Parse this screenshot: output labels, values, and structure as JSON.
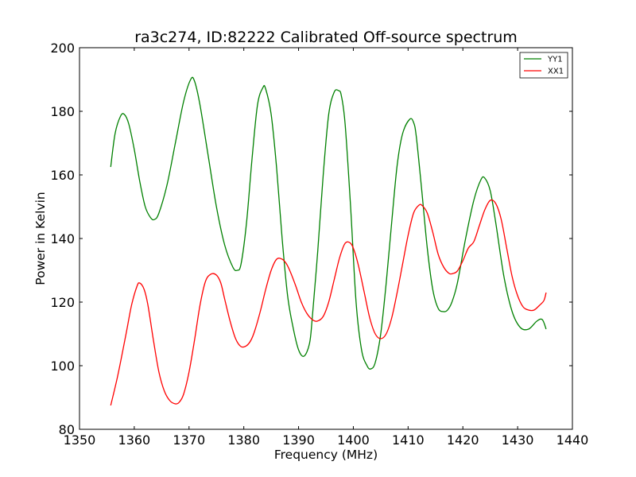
{
  "chart_data": {
    "type": "line",
    "title": "ra3c274, ID:82222 Calibrated Off-source spectrum",
    "xlabel": "Frequency (MHz)",
    "ylabel": "Power in Kelvin",
    "xlim": [
      1350,
      1440
    ],
    "ylim": [
      80,
      200
    ],
    "xticks": [
      "1350",
      "1360",
      "1370",
      "1380",
      "1390",
      "1400",
      "1410",
      "1420",
      "1430",
      "1440"
    ],
    "yticks": [
      "80",
      "100",
      "120",
      "140",
      "160",
      "180",
      "200"
    ],
    "grid": false,
    "legend_position": "top-right",
    "series": [
      {
        "name": "YY1",
        "color": "#008000",
        "x": [
          1355.7,
          1356.5,
          1357.5,
          1358.2,
          1359.0,
          1360.0,
          1361.0,
          1362.0,
          1363.0,
          1363.7,
          1364.5,
          1366.0,
          1367.5,
          1369.0,
          1370.3,
          1371.0,
          1372.0,
          1373.5,
          1375.0,
          1376.5,
          1378.0,
          1378.8,
          1379.5,
          1380.5,
          1381.5,
          1382.5,
          1383.5,
          1384.0,
          1385.0,
          1386.0,
          1387.0,
          1388.0,
          1389.0,
          1390.0,
          1391.0,
          1392.0,
          1392.5,
          1393.5,
          1394.5,
          1395.5,
          1396.5,
          1397.3,
          1397.8,
          1398.5,
          1399.5,
          1400.5,
          1401.5,
          1402.5,
          1403.2,
          1404.0,
          1405.0,
          1406.0,
          1407.0,
          1408.0,
          1409.0,
          1410.3,
          1411.0,
          1411.5,
          1412.5,
          1413.5,
          1414.5,
          1415.5,
          1416.5,
          1417.2,
          1418.0,
          1419.0,
          1420.5,
          1422.0,
          1423.3,
          1424.0,
          1425.0,
          1426.0,
          1427.5,
          1429.0,
          1430.5,
          1432.0,
          1433.5,
          1434.5,
          1435.2
        ],
        "values": [
          162.5,
          173,
          178.5,
          179,
          176,
          168,
          158,
          150,
          146.5,
          146,
          148,
          157,
          170,
          183,
          190,
          189.5,
          182,
          166,
          150,
          138,
          131,
          130,
          132,
          145,
          165,
          182,
          187.5,
          187,
          179,
          162,
          140,
          122,
          112,
          105,
          103,
          107,
          115,
          136,
          160,
          179,
          186,
          186.5,
          185,
          176,
          150,
          120,
          105,
          100,
          99,
          101,
          110,
          126,
          145,
          163,
          173,
          177.5,
          176.5,
          172,
          155,
          137,
          124,
          118,
          117,
          117.5,
          120,
          126,
          140,
          152,
          158.5,
          159,
          155,
          145,
          128,
          117,
          112,
          111.5,
          114,
          114.5,
          111.5
        ]
      },
      {
        "name": "XX1",
        "color": "#ff0000",
        "x": [
          1355.7,
          1357.0,
          1358.5,
          1359.5,
          1360.5,
          1361.0,
          1361.8,
          1362.5,
          1363.5,
          1364.5,
          1365.5,
          1366.5,
          1367.5,
          1368.2,
          1369.0,
          1370.0,
          1371.0,
          1372.0,
          1373.0,
          1374.0,
          1375.0,
          1375.8,
          1376.5,
          1377.5,
          1378.5,
          1379.5,
          1380.5,
          1381.3,
          1382.0,
          1383.0,
          1384.0,
          1385.0,
          1386.0,
          1387.0,
          1387.8,
          1388.5,
          1389.5,
          1390.5,
          1391.5,
          1392.5,
          1393.4,
          1394.5,
          1395.5,
          1396.5,
          1397.5,
          1398.5,
          1399.5,
          1400.2,
          1401.0,
          1402.0,
          1403.0,
          1404.0,
          1405.0,
          1406.0,
          1407.0,
          1408.0,
          1409.0,
          1410.0,
          1411.0,
          1412.0,
          1412.6,
          1413.5,
          1414.5,
          1415.5,
          1416.5,
          1417.5,
          1418.2,
          1419.0,
          1420.0,
          1421.0,
          1422.0,
          1423.0,
          1424.0,
          1425.0,
          1426.0,
          1427.0,
          1428.0,
          1429.0,
          1430.0,
          1431.0,
          1432.0,
          1433.0,
          1434.0,
          1434.8,
          1435.2
        ],
        "values": [
          87.5,
          97,
          110,
          119,
          125,
          126,
          124,
          119,
          108,
          98,
          92,
          89,
          88,
          88.5,
          91,
          98,
          108,
          119,
          126.5,
          128.8,
          128.5,
          126,
          121,
          114,
          108.5,
          106,
          106.3,
          108,
          111,
          117,
          124,
          130,
          133.5,
          133.5,
          132,
          129.5,
          125,
          120,
          116.5,
          114.5,
          114,
          115.5,
          120,
          127,
          134,
          138.5,
          138.5,
          136,
          131,
          123,
          115,
          110,
          108.5,
          110,
          115,
          123,
          132,
          141,
          148,
          150.5,
          150.3,
          148,
          142,
          135,
          131,
          129,
          129,
          129.8,
          133,
          137,
          139,
          144,
          149,
          152,
          151,
          146,
          137,
          128,
          122,
          118.5,
          117.5,
          117.5,
          119,
          120.5,
          123
        ]
      }
    ]
  }
}
